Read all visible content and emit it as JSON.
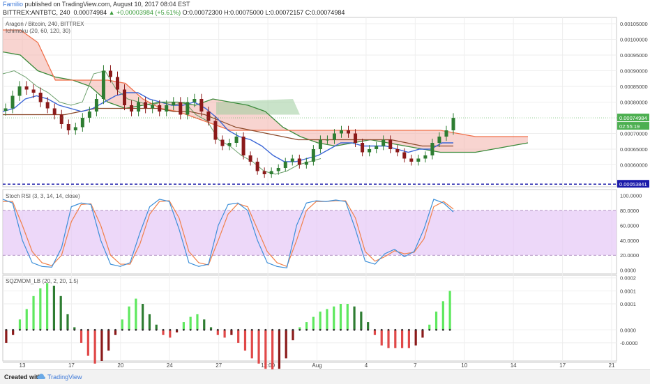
{
  "header": {
    "author": "Familio",
    "published": "published on TradingView.com, August 10, 2017 08:04 EST",
    "symbol": "BITTREX:ANTBTC, 240",
    "price": "0.00074984",
    "change": "▲ +0.00003984 (+5.61%)",
    "ohlc": "O:0.00072300 H:0.00075000 L:0.00072157 C:0.00074984"
  },
  "panes": {
    "main_title": "Aragon / Bitcoin, 240, BITTREX",
    "main_indicator": "Ichimoku (20, 60, 120, 30)",
    "rsi_title": "Stoch RSI (3, 3, 14, 14, close)",
    "mom_title": "SQZMOM_LB (20, 2, 20, 1.5)"
  },
  "badges": {
    "price": "0.00074984",
    "countdown": "02:55:19",
    "support": "0.00053841"
  },
  "colors": {
    "price_badge": "#4caf50",
    "countdown_badge": "#4caf50",
    "support_badge": "#1a1aaa",
    "cloud_bear": "#f4b8b0",
    "cloud_bull": "#9ccc9c",
    "rsi_band": "#e5c8f7",
    "bull_candle": "#2e7d32",
    "bear_candle": "#8b1a1a"
  },
  "footer": {
    "created": "Created with",
    "brand": "TradingView"
  },
  "chart_data": [
    {
      "type": "line",
      "name": "price",
      "x_labels": [
        "13",
        "17",
        "20",
        "24",
        "27",
        "12:00",
        "Aug",
        "4",
        "7",
        "10",
        "14",
        "17",
        "21"
      ],
      "y_ticks": [
        "0.00105000",
        "0.00100000",
        "0.00095000",
        "0.00090000",
        "0.00085000",
        "0.00080000",
        "0.00070000",
        "0.00065000",
        "0.00060000"
      ],
      "ylim": [
        0.00053,
        0.00107
      ],
      "close": [
        0.00078,
        0.00082,
        0.00085,
        0.00084,
        0.00083,
        0.0008,
        0.00078,
        0.00076,
        0.00073,
        0.00071,
        0.00072,
        0.00075,
        0.00077,
        0.00081,
        0.0009,
        0.00088,
        0.00084,
        0.00079,
        0.00077,
        0.0008,
        0.00078,
        0.00079,
        0.00077,
        0.00079,
        0.0008,
        0.00076,
        0.0008,
        0.00081,
        0.00077,
        0.00074,
        0.00068,
        0.00066,
        0.00067,
        0.00069,
        0.00063,
        0.00061,
        0.00058,
        0.00057,
        0.00058,
        0.00059,
        0.00061,
        0.00062,
        0.0006,
        0.00061,
        0.00065,
        0.00068,
        0.00068,
        0.0007,
        0.00071,
        0.0007,
        0.00067,
        0.00064,
        0.00065,
        0.00066,
        0.00068,
        0.00065,
        0.00064,
        0.00062,
        0.00061,
        0.00062,
        0.00063,
        0.00067,
        0.00069,
        0.00071,
        0.00074984
      ],
      "chikou": [
        0.00089,
        0.0009,
        0.00088,
        0.00085,
        0.00083,
        0.0008,
        0.00079,
        0.0008,
        0.00089,
        0.0009,
        0.00084,
        0.00081,
        0.0008,
        0.00079,
        0.0008,
        0.00079,
        0.0008,
        0.00076,
        0.00074,
        0.00068,
        0.00066,
        0.00063,
        0.00061,
        0.00058,
        0.00057,
        0.00058,
        0.0006,
        0.00061,
        0.00062
      ],
      "tenkan": [
        0.00077,
        0.00078,
        0.00081,
        0.00082,
        0.00081,
        0.00079,
        0.00078,
        0.00077,
        0.00078,
        0.0008,
        0.00082,
        0.00083,
        0.00083,
        0.00081,
        0.0008,
        0.00079,
        0.00079,
        0.0008,
        0.00078,
        0.00075,
        0.00071,
        0.00069,
        0.00068,
        0.00066,
        0.00063,
        0.00061,
        0.00061,
        0.00062,
        0.00063,
        0.00065,
        0.00067,
        0.00067,
        0.00066,
        0.00066,
        0.00066,
        0.00065,
        0.00064,
        0.00065,
        0.00065,
        0.00067,
        0.00067
      ],
      "kijun": [
        0.00076,
        0.00076,
        0.00076,
        0.00076,
        0.00076,
        0.00077,
        0.00078,
        0.00078,
        0.00078,
        0.00078,
        0.00078,
        0.00077,
        0.00077,
        0.00076,
        0.00074,
        0.00072,
        0.00071,
        0.0007,
        0.00069,
        0.00068,
        0.00068,
        0.00068,
        0.00068,
        0.00068,
        0.00068,
        0.00068,
        0.00067,
        0.00066,
        0.00066,
        0.00066
      ],
      "span_a": [
        0.00096,
        0.00095,
        0.0009,
        0.00088,
        0.00087,
        0.00085,
        0.0008,
        0.00078,
        0.00079,
        0.0008,
        0.0008,
        0.00079,
        0.00081,
        0.0008,
        0.00079,
        0.00077,
        0.00072,
        0.00069,
        0.00067,
        0.00066,
        0.00067,
        0.00068,
        0.00067,
        0.00066,
        0.00065,
        0.00064,
        0.00064,
        0.00064,
        0.00065,
        0.00066,
        0.00067
      ],
      "span_b": [
        0.00103,
        0.00103,
        0.00099,
        0.00087,
        0.00087,
        0.00087,
        0.00087,
        0.00086,
        0.00081,
        0.00078,
        0.00077,
        0.00075,
        0.00073,
        0.00071,
        0.00071,
        0.00071,
        0.00071,
        0.00071,
        0.00071,
        0.00071,
        0.00071,
        0.00071,
        0.00071,
        0.00071,
        0.00071,
        0.00071,
        0.0007,
        0.00069,
        0.00069,
        0.00069,
        0.00069
      ],
      "support_level": 0.00053841
    },
    {
      "type": "line",
      "name": "Stoch RSI",
      "y_ticks": [
        "100.0000",
        "80.0000",
        "60.0000",
        "40.0000",
        "20.0000",
        "0.0000"
      ],
      "ylim": [
        -5,
        108
      ],
      "band": [
        20,
        80
      ],
      "k": [
        95,
        90,
        40,
        10,
        5,
        4,
        30,
        85,
        90,
        88,
        40,
        8,
        5,
        10,
        50,
        85,
        95,
        92,
        55,
        10,
        5,
        8,
        60,
        88,
        90,
        80,
        40,
        10,
        5,
        3,
        60,
        90,
        93,
        92,
        94,
        92,
        55,
        12,
        8,
        22,
        28,
        18,
        25,
        55,
        95,
        90,
        78
      ],
      "d": [
        92,
        92,
        60,
        25,
        10,
        6,
        20,
        65,
        88,
        89,
        60,
        20,
        8,
        8,
        35,
        75,
        92,
        93,
        70,
        25,
        10,
        7,
        40,
        75,
        89,
        85,
        55,
        25,
        10,
        5,
        40,
        80,
        92,
        92,
        93,
        93,
        70,
        25,
        12,
        18,
        26,
        22,
        24,
        42,
        85,
        92,
        82
      ]
    },
    {
      "type": "bar",
      "name": "SQZMOM_LB",
      "y_ticks": [
        "0.0002",
        "0.0001",
        "0.0001",
        "0.0000",
        "-0.0000"
      ],
      "ylim": [
        -0.00012,
        0.00021
      ],
      "values": [
        -5e-05,
        -2e-05,
        4e-05,
        8e-05,
        0.00013,
        0.00016,
        0.00018,
        0.00017,
        0.00013,
        6e-05,
        1e-05,
        -5e-05,
        -0.0001,
        -0.00013,
        -0.00012,
        -8e-05,
        -2e-05,
        4e-05,
        9e-05,
        0.00012,
        0.0001,
        6e-05,
        2e-05,
        -2e-05,
        -3e-05,
        -1e-05,
        3e-05,
        5e-05,
        6e-05,
        4e-05,
        1e-05,
        -2e-05,
        -3e-05,
        -2e-05,
        -5e-05,
        -8e-05,
        -0.00011,
        -0.00013,
        -0.00015,
        -0.00016,
        -0.00015,
        -0.00011,
        -4e-05,
        1e-05,
        3e-05,
        5e-05,
        7e-05,
        8e-05,
        9e-05,
        0.0001,
        0.0001,
        9e-05,
        7e-05,
        3e-05,
        -2e-05,
        -6e-05,
        -7e-05,
        -7e-05,
        -7e-05,
        -7e-05,
        -6e-05,
        -3e-05,
        2e-05,
        7e-05,
        0.00011,
        0.00015
      ]
    }
  ]
}
